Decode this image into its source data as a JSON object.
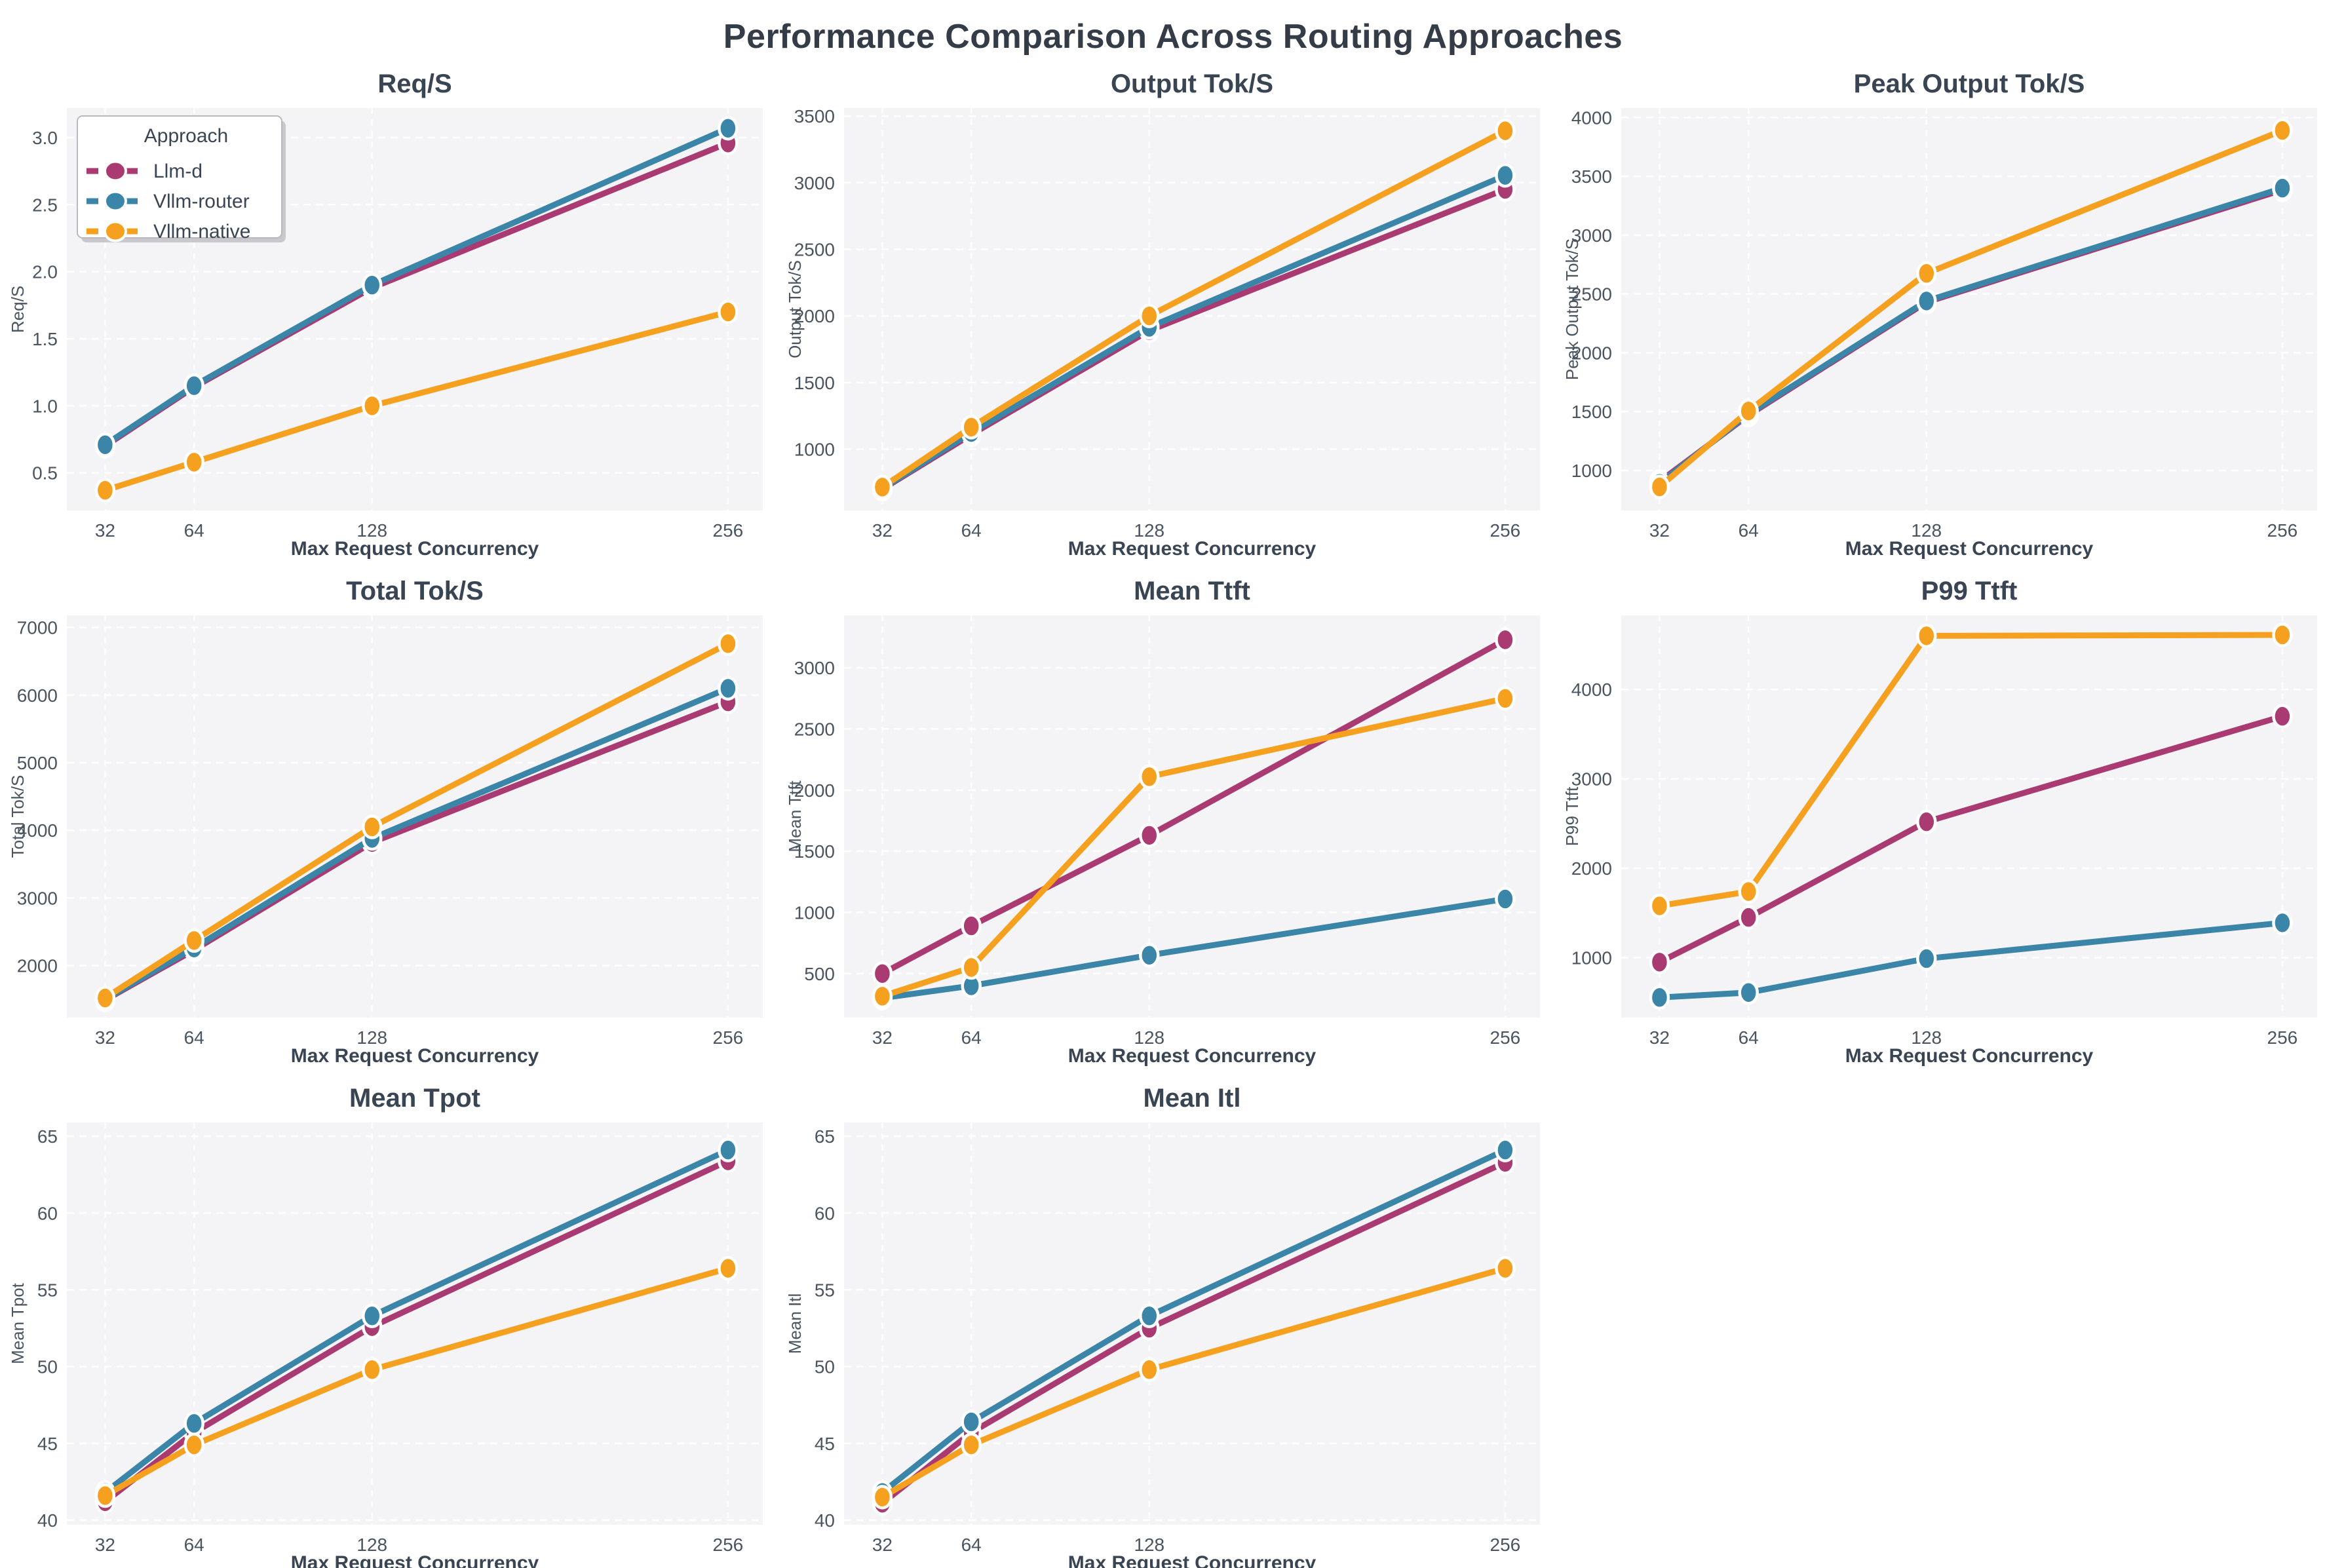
{
  "page_title": "Performance Comparison Across Routing Approaches",
  "x_axis": {
    "label": "Max Request Concurrency",
    "ticks": [
      32,
      64,
      128,
      256
    ]
  },
  "legend": {
    "title": "Approach",
    "entries": [
      {
        "label": "Llm-d",
        "color": "#aa3b72"
      },
      {
        "label": "Vllm-router",
        "color": "#3a85a8"
      },
      {
        "label": "Vllm-native",
        "color": "#f5a01e"
      }
    ]
  },
  "style_colors": {
    "axes_background": "#f4f4f6",
    "gridline": "#ffffff",
    "tick_label": "#4a5560",
    "axis_label": "#3a4553",
    "title": "#343c47",
    "marker_halo": "#ffffff"
  },
  "chart_data": [
    {
      "id": "req-s",
      "type": "line",
      "title": "Req/S",
      "ylabel": "Req/S",
      "xlabel": "Max Request Concurrency",
      "x": [
        32,
        64,
        128,
        256
      ],
      "xticklabels": [
        "32",
        "64",
        "128",
        "256"
      ],
      "yticks": [
        0.5,
        1.0,
        1.5,
        2.0,
        2.5,
        3.0
      ],
      "ytick_format": "float1",
      "ylim": [
        0.22,
        3.22
      ],
      "show_legend": true,
      "series": [
        {
          "name": "Llm-d",
          "color": "#aa3b72",
          "values": [
            0.7,
            1.14,
            1.88,
            2.96
          ]
        },
        {
          "name": "Vllm-router",
          "color": "#3a85a8",
          "values": [
            0.71,
            1.15,
            1.9,
            3.07
          ]
        },
        {
          "name": "Vllm-native",
          "color": "#f5a01e",
          "values": [
            0.37,
            0.58,
            1.0,
            1.7
          ]
        }
      ]
    },
    {
      "id": "output-tok-s",
      "type": "line",
      "title": "Output Tok/S",
      "ylabel": "Output Tok/S",
      "xlabel": "Max Request Concurrency",
      "x": [
        32,
        64,
        128,
        256
      ],
      "xticklabels": [
        "32",
        "64",
        "128",
        "256"
      ],
      "yticks": [
        1000,
        1500,
        2000,
        2500,
        3000,
        3500
      ],
      "ytick_format": "int",
      "ylim": [
        540,
        3560
      ],
      "show_legend": false,
      "series": [
        {
          "name": "Llm-d",
          "color": "#aa3b72",
          "values": [
            700,
            1110,
            1890,
            2950
          ]
        },
        {
          "name": "Vllm-router",
          "color": "#3a85a8",
          "values": [
            705,
            1125,
            1915,
            3055
          ]
        },
        {
          "name": "Vllm-native",
          "color": "#f5a01e",
          "values": [
            715,
            1165,
            2000,
            3390
          ]
        }
      ]
    },
    {
      "id": "peak-output-tok-s",
      "type": "line",
      "title": "Peak Output Tok/S",
      "ylabel": "Peak Output Tok/S",
      "xlabel": "Max Request Concurrency",
      "x": [
        32,
        64,
        128,
        256
      ],
      "xticklabels": [
        "32",
        "64",
        "128",
        "256"
      ],
      "yticks": [
        1000,
        1500,
        2000,
        2500,
        3000,
        3500,
        4000
      ],
      "ytick_format": "int",
      "ylim": [
        660,
        4080
      ],
      "show_legend": false,
      "series": [
        {
          "name": "Llm-d",
          "color": "#aa3b72",
          "values": [
            905,
            1470,
            2430,
            3385
          ]
        },
        {
          "name": "Vllm-router",
          "color": "#3a85a8",
          "values": [
            890,
            1480,
            2440,
            3400
          ]
        },
        {
          "name": "Vllm-native",
          "color": "#f5a01e",
          "values": [
            860,
            1505,
            2675,
            3890
          ]
        }
      ]
    },
    {
      "id": "total-tok-s",
      "type": "line",
      "title": "Total Tok/S",
      "ylabel": "Total Tok/S",
      "xlabel": "Max Request Concurrency",
      "x": [
        32,
        64,
        128,
        256
      ],
      "xticklabels": [
        "32",
        "64",
        "128",
        "256"
      ],
      "yticks": [
        2000,
        3000,
        4000,
        5000,
        6000,
        7000
      ],
      "ytick_format": "int",
      "ylim": [
        1230,
        7180
      ],
      "show_legend": false,
      "series": [
        {
          "name": "Llm-d",
          "color": "#aa3b72",
          "values": [
            1490,
            2230,
            3820,
            5900
          ]
        },
        {
          "name": "Vllm-router",
          "color": "#3a85a8",
          "values": [
            1500,
            2260,
            3880,
            6100
          ]
        },
        {
          "name": "Vllm-native",
          "color": "#f5a01e",
          "values": [
            1520,
            2370,
            4050,
            6760
          ]
        }
      ]
    },
    {
      "id": "mean-ttft",
      "type": "line",
      "title": "Mean Ttft",
      "ylabel": "Mean Ttft",
      "xlabel": "Max Request Concurrency",
      "x": [
        32,
        64,
        128,
        256
      ],
      "xticklabels": [
        "32",
        "64",
        "128",
        "256"
      ],
      "yticks": [
        500,
        1000,
        1500,
        2000,
        2500,
        3000
      ],
      "ytick_format": "int",
      "ylim": [
        140,
        3430
      ],
      "show_legend": false,
      "series": [
        {
          "name": "Llm-d",
          "color": "#aa3b72",
          "values": [
            500,
            890,
            1630,
            3230
          ]
        },
        {
          "name": "Vllm-router",
          "color": "#3a85a8",
          "values": [
            300,
            400,
            650,
            1110
          ]
        },
        {
          "name": "Vllm-native",
          "color": "#f5a01e",
          "values": [
            315,
            550,
            2110,
            2750
          ]
        }
      ]
    },
    {
      "id": "p99-ttft",
      "type": "line",
      "title": "P99 Ttft",
      "ylabel": "P99 Ttft",
      "xlabel": "Max Request Concurrency",
      "x": [
        32,
        64,
        128,
        256
      ],
      "xticklabels": [
        "32",
        "64",
        "128",
        "256"
      ],
      "yticks": [
        1000,
        2000,
        3000,
        4000
      ],
      "ytick_format": "int",
      "ylim": [
        330,
        4830
      ],
      "show_legend": false,
      "series": [
        {
          "name": "Llm-d",
          "color": "#aa3b72",
          "values": [
            950,
            1450,
            2520,
            3700
          ]
        },
        {
          "name": "Vllm-router",
          "color": "#3a85a8",
          "values": [
            555,
            610,
            990,
            1390
          ]
        },
        {
          "name": "Vllm-native",
          "color": "#f5a01e",
          "values": [
            1580,
            1740,
            4600,
            4610
          ]
        }
      ]
    },
    {
      "id": "mean-tpot",
      "type": "line",
      "title": "Mean Tpot",
      "ylabel": "Mean Tpot",
      "xlabel": "Max Request Concurrency",
      "x": [
        32,
        64,
        128,
        256
      ],
      "xticklabels": [
        "32",
        "64",
        "128",
        "256"
      ],
      "yticks": [
        40,
        45,
        50,
        55,
        60,
        65
      ],
      "ytick_format": "int",
      "ylim": [
        39.7,
        65.9
      ],
      "show_legend": false,
      "series": [
        {
          "name": "Llm-d",
          "color": "#aa3b72",
          "values": [
            41.2,
            45.7,
            52.6,
            63.4
          ]
        },
        {
          "name": "Vllm-router",
          "color": "#3a85a8",
          "values": [
            41.8,
            46.3,
            53.3,
            64.1
          ]
        },
        {
          "name": "Vllm-native",
          "color": "#f5a01e",
          "values": [
            41.6,
            44.9,
            49.8,
            56.4
          ]
        }
      ]
    },
    {
      "id": "mean-itl",
      "type": "line",
      "title": "Mean Itl",
      "ylabel": "Mean Itl",
      "xlabel": "Max Request Concurrency",
      "x": [
        32,
        64,
        128,
        256
      ],
      "xticklabels": [
        "32",
        "64",
        "128",
        "256"
      ],
      "yticks": [
        40,
        45,
        50,
        55,
        60,
        65
      ],
      "ytick_format": "int",
      "ylim": [
        39.7,
        65.9
      ],
      "show_legend": false,
      "series": [
        {
          "name": "Llm-d",
          "color": "#aa3b72",
          "values": [
            41.1,
            45.7,
            52.5,
            63.3
          ]
        },
        {
          "name": "Vllm-router",
          "color": "#3a85a8",
          "values": [
            41.8,
            46.4,
            53.3,
            64.1
          ]
        },
        {
          "name": "Vllm-native",
          "color": "#f5a01e",
          "values": [
            41.5,
            44.9,
            49.8,
            56.4
          ]
        }
      ]
    }
  ]
}
